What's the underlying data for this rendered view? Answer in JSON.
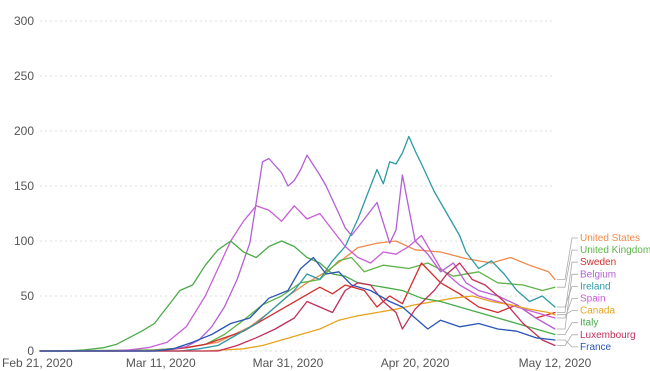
{
  "chart_data": {
    "type": "line",
    "title": "",
    "xlabel": "",
    "ylabel": "",
    "x_ticks": [
      "Feb 21, 2020",
      "Mar 11, 2020",
      "Mar 31, 2020",
      "Apr 20, 2020",
      "May 12, 2020"
    ],
    "x_range": [
      "2020-02-21",
      "2020-05-12"
    ],
    "ylim": [
      0,
      310
    ],
    "y_ticks": [
      0,
      50,
      100,
      150,
      200,
      250,
      300
    ],
    "grid": "horizontal dotted",
    "legend_placement": "right, end of lines",
    "series": [
      {
        "name": "United States",
        "color": "#f08a4b",
        "points": [
          [
            "2020-02-21",
            0
          ],
          [
            "2020-03-05",
            0
          ],
          [
            "2020-03-10",
            1
          ],
          [
            "2020-03-15",
            3
          ],
          [
            "2020-03-20",
            8
          ],
          [
            "2020-03-25",
            22
          ],
          [
            "2020-03-28",
            35
          ],
          [
            "2020-03-31",
            50
          ],
          [
            "2020-04-03",
            62
          ],
          [
            "2020-04-06",
            72
          ],
          [
            "2020-04-09",
            85
          ],
          [
            "2020-04-11",
            94
          ],
          [
            "2020-04-14",
            98
          ],
          [
            "2020-04-17",
            100
          ],
          [
            "2020-04-20",
            92
          ],
          [
            "2020-04-24",
            90
          ],
          [
            "2020-04-28",
            84
          ],
          [
            "2020-05-02",
            80
          ],
          [
            "2020-05-05",
            85
          ],
          [
            "2020-05-08",
            78
          ],
          [
            "2020-05-11",
            72
          ],
          [
            "2020-05-12",
            65
          ]
        ]
      },
      {
        "name": "United Kingdom",
        "color": "#5fb34a",
        "points": [
          [
            "2020-02-21",
            0
          ],
          [
            "2020-03-10",
            1
          ],
          [
            "2020-03-15",
            3
          ],
          [
            "2020-03-18",
            6
          ],
          [
            "2020-03-21",
            15
          ],
          [
            "2020-03-24",
            28
          ],
          [
            "2020-03-27",
            42
          ],
          [
            "2020-03-30",
            50
          ],
          [
            "2020-04-02",
            62
          ],
          [
            "2020-04-05",
            65
          ],
          [
            "2020-04-08",
            82
          ],
          [
            "2020-04-10",
            85
          ],
          [
            "2020-04-12",
            72
          ],
          [
            "2020-04-15",
            78
          ],
          [
            "2020-04-19",
            75
          ],
          [
            "2020-04-22",
            80
          ],
          [
            "2020-04-26",
            68
          ],
          [
            "2020-04-30",
            72
          ],
          [
            "2020-05-03",
            62
          ],
          [
            "2020-05-07",
            60
          ],
          [
            "2020-05-10",
            55
          ],
          [
            "2020-05-12",
            58
          ]
        ]
      },
      {
        "name": "Sweden",
        "color": "#d42d2d",
        "points": [
          [
            "2020-02-21",
            0
          ],
          [
            "2020-03-09",
            0
          ],
          [
            "2020-03-12",
            1
          ],
          [
            "2020-03-15",
            3
          ],
          [
            "2020-03-18",
            6
          ],
          [
            "2020-03-21",
            12
          ],
          [
            "2020-03-24",
            18
          ],
          [
            "2020-03-27",
            28
          ],
          [
            "2020-03-30",
            38
          ],
          [
            "2020-04-02",
            48
          ],
          [
            "2020-04-05",
            58
          ],
          [
            "2020-04-07",
            52
          ],
          [
            "2020-04-09",
            60
          ],
          [
            "2020-04-12",
            55
          ],
          [
            "2020-04-14",
            40
          ],
          [
            "2020-04-16",
            50
          ],
          [
            "2020-04-18",
            43
          ],
          [
            "2020-04-21",
            80
          ],
          [
            "2020-04-24",
            62
          ],
          [
            "2020-04-27",
            52
          ],
          [
            "2020-04-30",
            40
          ],
          [
            "2020-05-03",
            35
          ],
          [
            "2020-05-06",
            42
          ],
          [
            "2020-05-09",
            30
          ],
          [
            "2020-05-12",
            35
          ]
        ]
      },
      {
        "name": "Belgium",
        "color": "#b35fd6",
        "points": [
          [
            "2020-02-21",
            0
          ],
          [
            "2020-03-10",
            0
          ],
          [
            "2020-03-13",
            2
          ],
          [
            "2020-03-15",
            4
          ],
          [
            "2020-03-17",
            10
          ],
          [
            "2020-03-19",
            22
          ],
          [
            "2020-03-21",
            40
          ],
          [
            "2020-03-23",
            65
          ],
          [
            "2020-03-25",
            98
          ],
          [
            "2020-03-26",
            135
          ],
          [
            "2020-03-27",
            172
          ],
          [
            "2020-03-28",
            175
          ],
          [
            "2020-03-30",
            162
          ],
          [
            "2020-03-31",
            150
          ],
          [
            "2020-04-01",
            155
          ],
          [
            "2020-04-02",
            165
          ],
          [
            "2020-04-03",
            178
          ],
          [
            "2020-04-05",
            160
          ],
          [
            "2020-04-06",
            150
          ],
          [
            "2020-04-08",
            125
          ],
          [
            "2020-04-09",
            112
          ],
          [
            "2020-04-10",
            105
          ],
          [
            "2020-04-12",
            120
          ],
          [
            "2020-04-14",
            135
          ],
          [
            "2020-04-16",
            98
          ],
          [
            "2020-04-17",
            110
          ],
          [
            "2020-04-18",
            160
          ],
          [
            "2020-04-20",
            100
          ],
          [
            "2020-04-22",
            88
          ],
          [
            "2020-04-24",
            72
          ],
          [
            "2020-04-26",
            80
          ],
          [
            "2020-04-28",
            62
          ],
          [
            "2020-04-30",
            55
          ],
          [
            "2020-05-03",
            50
          ],
          [
            "2020-05-06",
            42
          ],
          [
            "2020-05-09",
            30
          ],
          [
            "2020-05-12",
            20
          ]
        ]
      },
      {
        "name": "Ireland",
        "color": "#2d9aa6",
        "points": [
          [
            "2020-02-21",
            0
          ],
          [
            "2020-03-14",
            0
          ],
          [
            "2020-03-17",
            2
          ],
          [
            "2020-03-20",
            5
          ],
          [
            "2020-03-23",
            15
          ],
          [
            "2020-03-26",
            25
          ],
          [
            "2020-03-29",
            40
          ],
          [
            "2020-04-01",
            55
          ],
          [
            "2020-04-03",
            70
          ],
          [
            "2020-04-05",
            65
          ],
          [
            "2020-04-07",
            82
          ],
          [
            "2020-04-09",
            95
          ],
          [
            "2020-04-11",
            120
          ],
          [
            "2020-04-13",
            150
          ],
          [
            "2020-04-14",
            165
          ],
          [
            "2020-04-15",
            152
          ],
          [
            "2020-04-16",
            172
          ],
          [
            "2020-04-17",
            170
          ],
          [
            "2020-04-18",
            180
          ],
          [
            "2020-04-19",
            195
          ],
          [
            "2020-04-20",
            182
          ],
          [
            "2020-04-21",
            170
          ],
          [
            "2020-04-23",
            145
          ],
          [
            "2020-04-25",
            125
          ],
          [
            "2020-04-27",
            105
          ],
          [
            "2020-04-28",
            90
          ],
          [
            "2020-04-30",
            75
          ],
          [
            "2020-05-02",
            82
          ],
          [
            "2020-05-04",
            70
          ],
          [
            "2020-05-06",
            55
          ],
          [
            "2020-05-08",
            45
          ],
          [
            "2020-05-10",
            50
          ],
          [
            "2020-05-12",
            40
          ]
        ]
      },
      {
        "name": "Spain",
        "color": "#c85fd6",
        "points": [
          [
            "2020-02-21",
            0
          ],
          [
            "2020-03-03",
            0
          ],
          [
            "2020-03-06",
            1
          ],
          [
            "2020-03-09",
            3
          ],
          [
            "2020-03-12",
            8
          ],
          [
            "2020-03-15",
            22
          ],
          [
            "2020-03-18",
            50
          ],
          [
            "2020-03-20",
            75
          ],
          [
            "2020-03-22",
            100
          ],
          [
            "2020-03-24",
            118
          ],
          [
            "2020-03-26",
            132
          ],
          [
            "2020-03-28",
            128
          ],
          [
            "2020-03-30",
            118
          ],
          [
            "2020-04-01",
            132
          ],
          [
            "2020-04-03",
            120
          ],
          [
            "2020-04-05",
            125
          ],
          [
            "2020-04-07",
            110
          ],
          [
            "2020-04-09",
            95
          ],
          [
            "2020-04-11",
            85
          ],
          [
            "2020-04-13",
            80
          ],
          [
            "2020-04-15",
            90
          ],
          [
            "2020-04-17",
            88
          ],
          [
            "2020-04-19",
            95
          ],
          [
            "2020-04-21",
            105
          ],
          [
            "2020-04-24",
            75
          ],
          [
            "2020-04-27",
            60
          ],
          [
            "2020-04-30",
            50
          ],
          [
            "2020-05-03",
            45
          ],
          [
            "2020-05-06",
            40
          ],
          [
            "2020-05-09",
            35
          ],
          [
            "2020-05-12",
            30
          ]
        ]
      },
      {
        "name": "Canada",
        "color": "#e6a41e",
        "points": [
          [
            "2020-02-21",
            0
          ],
          [
            "2020-03-18",
            0
          ],
          [
            "2020-03-21",
            1
          ],
          [
            "2020-03-24",
            2
          ],
          [
            "2020-03-27",
            5
          ],
          [
            "2020-03-30",
            10
          ],
          [
            "2020-04-02",
            15
          ],
          [
            "2020-04-05",
            20
          ],
          [
            "2020-04-08",
            28
          ],
          [
            "2020-04-11",
            32
          ],
          [
            "2020-04-14",
            35
          ],
          [
            "2020-04-17",
            38
          ],
          [
            "2020-04-20",
            42
          ],
          [
            "2020-04-23",
            45
          ],
          [
            "2020-04-26",
            48
          ],
          [
            "2020-04-29",
            50
          ],
          [
            "2020-05-02",
            45
          ],
          [
            "2020-05-05",
            42
          ],
          [
            "2020-05-08",
            38
          ],
          [
            "2020-05-11",
            35
          ],
          [
            "2020-05-12",
            33
          ]
        ]
      },
      {
        "name": "Italy",
        "color": "#4aaa4a",
        "points": [
          [
            "2020-02-21",
            0
          ],
          [
            "2020-02-25",
            0
          ],
          [
            "2020-02-28",
            1
          ],
          [
            "2020-03-02",
            3
          ],
          [
            "2020-03-04",
            6
          ],
          [
            "2020-03-06",
            12
          ],
          [
            "2020-03-08",
            18
          ],
          [
            "2020-03-10",
            25
          ],
          [
            "2020-03-12",
            40
          ],
          [
            "2020-03-14",
            55
          ],
          [
            "2020-03-16",
            60
          ],
          [
            "2020-03-18",
            78
          ],
          [
            "2020-03-20",
            92
          ],
          [
            "2020-03-22",
            100
          ],
          [
            "2020-03-24",
            90
          ],
          [
            "2020-03-26",
            85
          ],
          [
            "2020-03-28",
            95
          ],
          [
            "2020-03-30",
            100
          ],
          [
            "2020-04-01",
            95
          ],
          [
            "2020-04-03",
            85
          ],
          [
            "2020-04-05",
            80
          ],
          [
            "2020-04-07",
            70
          ],
          [
            "2020-04-09",
            68
          ],
          [
            "2020-04-11",
            62
          ],
          [
            "2020-04-13",
            60
          ],
          [
            "2020-04-15",
            58
          ],
          [
            "2020-04-18",
            55
          ],
          [
            "2020-04-21",
            48
          ],
          [
            "2020-04-24",
            45
          ],
          [
            "2020-04-27",
            40
          ],
          [
            "2020-04-30",
            35
          ],
          [
            "2020-05-03",
            30
          ],
          [
            "2020-05-06",
            25
          ],
          [
            "2020-05-09",
            20
          ],
          [
            "2020-05-12",
            15
          ]
        ]
      },
      {
        "name": "Luxembourg",
        "color": "#c0305a",
        "points": [
          [
            "2020-02-21",
            0
          ],
          [
            "2020-03-20",
            0
          ],
          [
            "2020-03-23",
            5
          ],
          [
            "2020-03-26",
            12
          ],
          [
            "2020-03-29",
            20
          ],
          [
            "2020-04-01",
            30
          ],
          [
            "2020-04-03",
            45
          ],
          [
            "2020-04-05",
            40
          ],
          [
            "2020-04-07",
            35
          ],
          [
            "2020-04-09",
            55
          ],
          [
            "2020-04-11",
            62
          ],
          [
            "2020-04-13",
            60
          ],
          [
            "2020-04-15",
            45
          ],
          [
            "2020-04-17",
            35
          ],
          [
            "2020-04-18",
            20
          ],
          [
            "2020-04-20",
            38
          ],
          [
            "2020-04-23",
            55
          ],
          [
            "2020-04-25",
            70
          ],
          [
            "2020-04-27",
            80
          ],
          [
            "2020-04-29",
            65
          ],
          [
            "2020-05-01",
            60
          ],
          [
            "2020-05-04",
            45
          ],
          [
            "2020-05-07",
            25
          ],
          [
            "2020-05-10",
            10
          ],
          [
            "2020-05-12",
            5
          ]
        ]
      },
      {
        "name": "France",
        "color": "#2a56b5",
        "points": [
          [
            "2020-02-21",
            0
          ],
          [
            "2020-03-10",
            0
          ],
          [
            "2020-03-13",
            2
          ],
          [
            "2020-03-16",
            8
          ],
          [
            "2020-03-19",
            15
          ],
          [
            "2020-03-22",
            25
          ],
          [
            "2020-03-25",
            30
          ],
          [
            "2020-03-28",
            48
          ],
          [
            "2020-03-31",
            55
          ],
          [
            "2020-04-02",
            75
          ],
          [
            "2020-04-04",
            85
          ],
          [
            "2020-04-06",
            70
          ],
          [
            "2020-04-08",
            72
          ],
          [
            "2020-04-10",
            60
          ],
          [
            "2020-04-13",
            55
          ],
          [
            "2020-04-16",
            45
          ],
          [
            "2020-04-18",
            40
          ],
          [
            "2020-04-20",
            30
          ],
          [
            "2020-04-22",
            20
          ],
          [
            "2020-04-24",
            28
          ],
          [
            "2020-04-27",
            22
          ],
          [
            "2020-04-30",
            25
          ],
          [
            "2020-05-03",
            20
          ],
          [
            "2020-05-06",
            18
          ],
          [
            "2020-05-09",
            12
          ],
          [
            "2020-05-12",
            10
          ]
        ]
      }
    ]
  }
}
